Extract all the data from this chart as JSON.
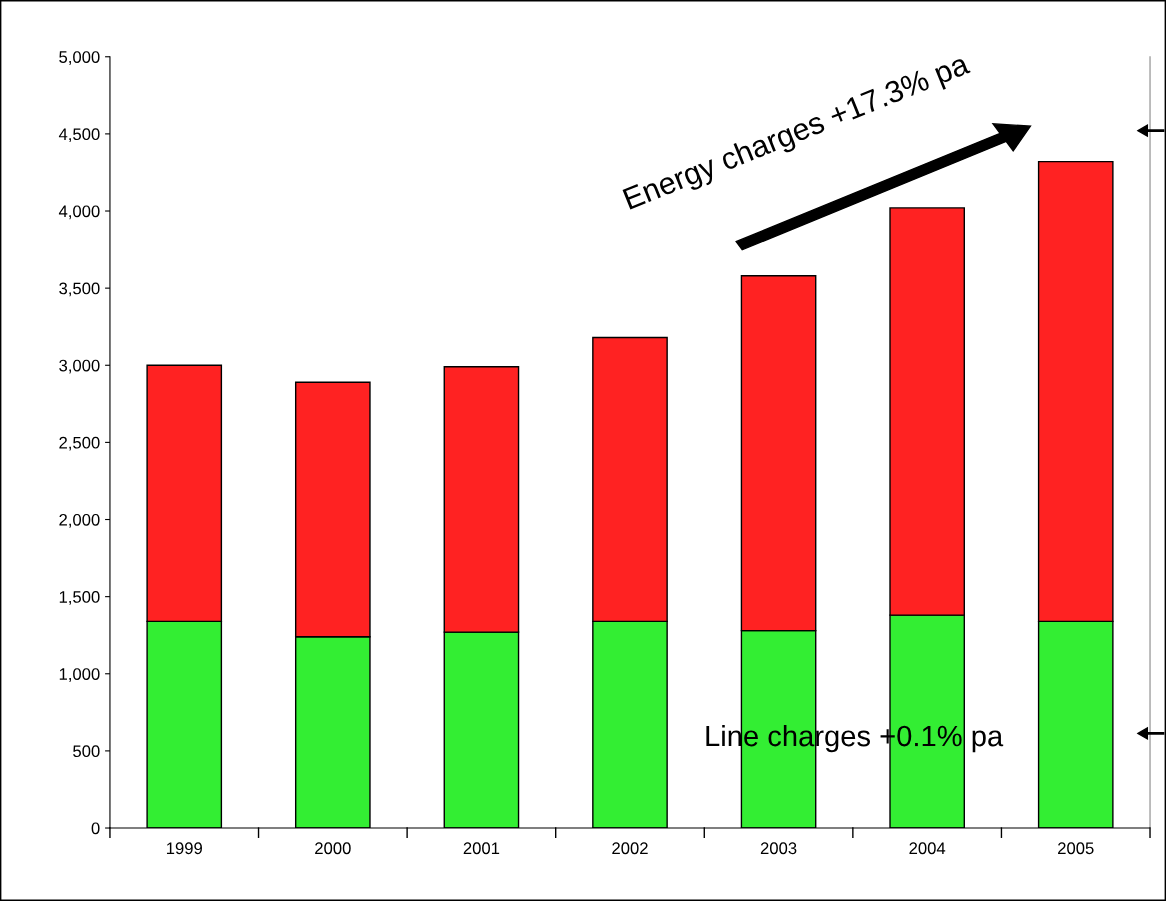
{
  "chart_data": {
    "type": "bar",
    "stacked": true,
    "categories": [
      "1999",
      "2000",
      "2001",
      "2002",
      "2003",
      "2004",
      "2005"
    ],
    "series": [
      {
        "color": "#33ee33",
        "values": [
          1340,
          1240,
          1270,
          1340,
          1280,
          1380,
          1340
        ]
      },
      {
        "color": "#ff2222",
        "values": [
          1660,
          1650,
          1720,
          1840,
          2300,
          2640,
          2980
        ]
      }
    ],
    "ylim": [
      0,
      5000
    ],
    "yticks": [
      {
        "value": 0,
        "label": "0"
      },
      {
        "value": 500,
        "label": "500"
      },
      {
        "value": 1000,
        "label": "1,000"
      },
      {
        "value": 1500,
        "label": "1,500"
      },
      {
        "value": 2000,
        "label": "2,000"
      },
      {
        "value": 2500,
        "label": "2,500"
      },
      {
        "value": 3000,
        "label": "3,000"
      },
      {
        "value": 3500,
        "label": "3,500"
      },
      {
        "value": 4000,
        "label": "4,000"
      },
      {
        "value": 4500,
        "label": "4,500"
      },
      {
        "value": 5000,
        "label": "5,000"
      }
    ],
    "annotations": [
      "Energy charges +17.3% pa",
      "Line charges +0.1% pa"
    ],
    "grid": false,
    "legend": false
  }
}
